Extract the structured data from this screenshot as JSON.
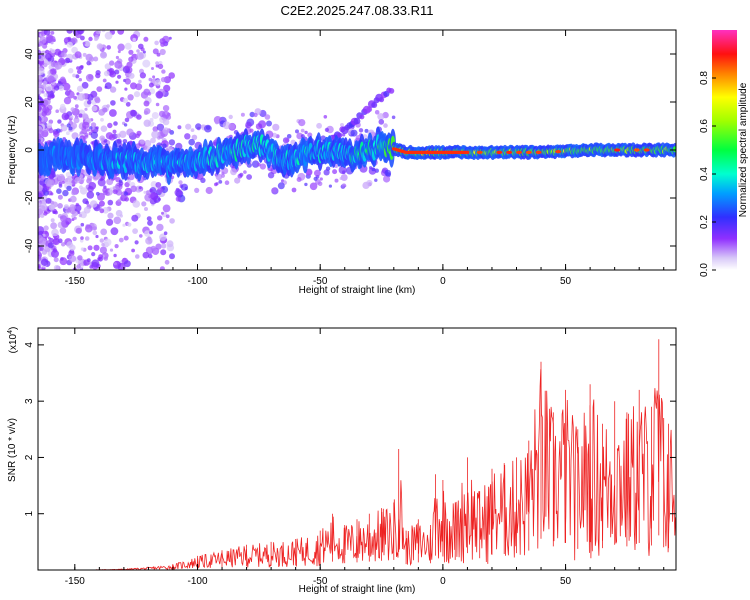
{
  "title": "C2E2.2025.247.08.33.R11",
  "colors": {
    "snr_line": "#ee2222",
    "frame": "#000000",
    "background": "#ffffff"
  },
  "chart_data": [
    {
      "type": "heatmap",
      "title": "C2E2.2025.247.08.33.R11",
      "xlabel": "Height of straight line (km)",
      "ylabel": "Frequency (Hz)",
      "xlim": [
        -165,
        95
      ],
      "ylim": [
        -50,
        50
      ],
      "x_ticks": [
        -150,
        -100,
        -50,
        0,
        50
      ],
      "x_tick_labels": [
        "-150",
        "-100",
        "-50",
        "0",
        "50"
      ],
      "y_ticks": [
        -40,
        -20,
        0,
        20,
        40
      ],
      "y_tick_labels": [
        "-40",
        "-20",
        "0",
        "20",
        "40"
      ],
      "colorbar": {
        "label": "Normalized spectral amplitude",
        "range": [
          0,
          1
        ],
        "ticks": [
          0.0,
          0.2,
          0.4,
          0.6,
          0.8
        ],
        "tick_labels": [
          "0.0",
          "0.2",
          "0.4",
          "0.6",
          "0.8"
        ],
        "colormap": "rainbow (white-violet-blue-cyan-green-yellow-red-magenta)"
      },
      "ridge": [
        {
          "x": -165,
          "y": -3,
          "amp": 0.3
        },
        {
          "x": -150,
          "y": -3,
          "amp": 0.3
        },
        {
          "x": -130,
          "y": -4,
          "amp": 0.35
        },
        {
          "x": -110,
          "y": -6,
          "amp": 0.35
        },
        {
          "x": -90,
          "y": -2,
          "amp": 0.4
        },
        {
          "x": -75,
          "y": 3,
          "amp": 0.45
        },
        {
          "x": -65,
          "y": -5,
          "amp": 0.4
        },
        {
          "x": -50,
          "y": 0,
          "amp": 0.4
        },
        {
          "x": -35,
          "y": -3,
          "amp": 0.45
        },
        {
          "x": -25,
          "y": 2,
          "amp": 0.5
        },
        {
          "x": -15,
          "y": -1,
          "amp": 0.85
        },
        {
          "x": 0,
          "y": -1,
          "amp": 0.9
        },
        {
          "x": 20,
          "y": -1,
          "amp": 0.7
        },
        {
          "x": 40,
          "y": -1,
          "amp": 0.7
        },
        {
          "x": 60,
          "y": 0,
          "amp": 0.7
        },
        {
          "x": 80,
          "y": 0,
          "amp": 0.7
        },
        {
          "x": 95,
          "y": 0,
          "amp": 0.65
        }
      ]
    },
    {
      "type": "line",
      "xlabel": "Height of straight line (km)",
      "ylabel": "SNR (10 * v/v)",
      "scale_label": "(x10",
      "scale_exponent": "4",
      "scale_suffix": ")",
      "xlim": [
        -165,
        95
      ],
      "ylim": [
        0,
        4.3
      ],
      "x_ticks": [
        -150,
        -100,
        -50,
        0,
        50
      ],
      "x_tick_labels": [
        "-150",
        "-100",
        "-50",
        "0",
        "50"
      ],
      "y_ticks": [
        1,
        2,
        3,
        4
      ],
      "y_tick_labels": [
        "1",
        "2",
        "3",
        "4"
      ],
      "series": [
        {
          "name": "SNR",
          "x": [
            -165,
            -145,
            -130,
            -120,
            -110,
            -100,
            -90,
            -80,
            -70,
            -60,
            -50,
            -45,
            -40,
            -35,
            -30,
            -25,
            -20,
            -18,
            -15,
            -10,
            -5,
            -3,
            0,
            5,
            10,
            15,
            20,
            25,
            30,
            35,
            40,
            45,
            50,
            55,
            60,
            65,
            70,
            75,
            80,
            85,
            88,
            90,
            92,
            95
          ],
          "values": [
            0.0,
            0.0,
            0.02,
            0.05,
            0.1,
            0.25,
            0.35,
            0.45,
            0.5,
            0.55,
            0.7,
            1.0,
            0.8,
            0.9,
            1.0,
            1.1,
            1.2,
            2.15,
            0.7,
            0.9,
            0.8,
            1.7,
            1.6,
            1.2,
            2.0,
            1.4,
            1.8,
            1.9,
            2.0,
            2.3,
            3.7,
            2.8,
            3.2,
            2.5,
            3.3,
            2.6,
            3.0,
            2.8,
            3.2,
            2.9,
            4.1,
            2.7,
            2.6,
            2.7
          ]
        }
      ]
    }
  ]
}
